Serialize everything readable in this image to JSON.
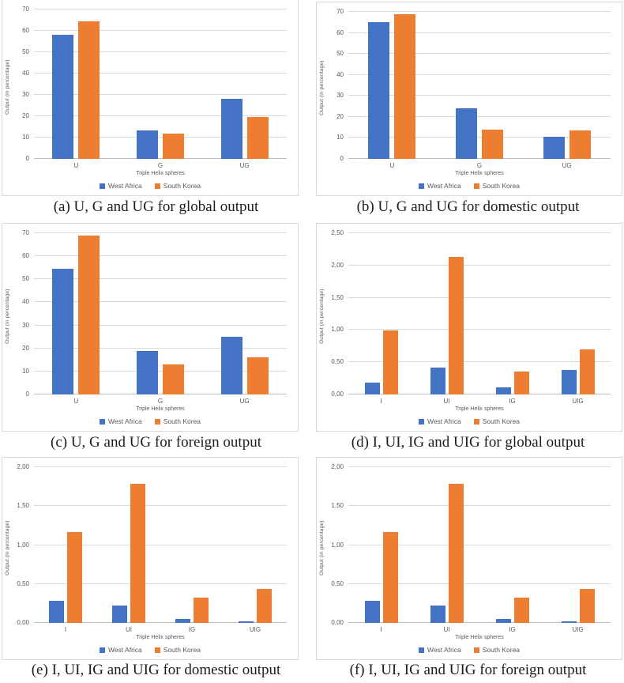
{
  "figure": {
    "y_axis_title": "Output (in percentage)",
    "x_axis_title": "Triple Helix spheres",
    "legend": [
      "West Africa",
      "South Korea"
    ],
    "colors": {
      "west_africa": "#4472C4",
      "south_korea": "#ED7D31",
      "gridline": "#d9d9d9",
      "tick_text": "#595959"
    }
  },
  "chart_data": [
    {
      "type": "bar",
      "id": "a",
      "caption": "(a) U, G and UG for global output",
      "categories": [
        "U",
        "G",
        "UG"
      ],
      "series": [
        {
          "name": "West Africa",
          "color": "#4472C4",
          "values": [
            58,
            13.5,
            28
          ]
        },
        {
          "name": "South Korea",
          "color": "#ED7D31",
          "values": [
            64.5,
            12,
            19.5
          ]
        }
      ],
      "xlabel": "Triple Helix spheres",
      "ylabel": "Output (in percentage)",
      "ylim": [
        0,
        70
      ],
      "yticks": [
        "0",
        "10",
        "20",
        "30",
        "40",
        "50",
        "60",
        "70"
      ],
      "grid": true,
      "legend_position": "bottom"
    },
    {
      "type": "bar",
      "id": "b",
      "caption": "(b) U, G and UG for domestic output",
      "categories": [
        "U",
        "G",
        "UG"
      ],
      "series": [
        {
          "name": "West Africa",
          "color": "#4472C4",
          "values": [
            65,
            24,
            10.5
          ]
        },
        {
          "name": "South Korea",
          "color": "#ED7D31",
          "values": [
            69,
            14,
            13.5
          ]
        }
      ],
      "xlabel": "Triple Helix spheres",
      "ylabel": "Output (in percentage)",
      "ylim": [
        0,
        70
      ],
      "yticks": [
        "0",
        "10",
        "20",
        "30",
        "40",
        "50",
        "60",
        "70"
      ],
      "grid": true,
      "legend_position": "bottom"
    },
    {
      "type": "bar",
      "id": "c",
      "caption": "(c) U, G and UG for foreign output",
      "categories": [
        "U",
        "G",
        "UG"
      ],
      "series": [
        {
          "name": "West Africa",
          "color": "#4472C4",
          "values": [
            54.5,
            19,
            25
          ]
        },
        {
          "name": "South Korea",
          "color": "#ED7D31",
          "values": [
            69,
            13,
            16
          ]
        }
      ],
      "xlabel": "Triple Helix spheres",
      "ylabel": "Output (in percentage)",
      "ylim": [
        0,
        70
      ],
      "yticks": [
        "0",
        "10",
        "20",
        "30",
        "40",
        "50",
        "60",
        "70"
      ],
      "grid": true,
      "legend_position": "bottom"
    },
    {
      "type": "bar",
      "id": "d",
      "caption": "(d) I, UI, IG and UIG for global output",
      "categories": [
        "I",
        "UI",
        "IG",
        "UIG"
      ],
      "series": [
        {
          "name": "West Africa",
          "color": "#4472C4",
          "values": [
            0.19,
            0.42,
            0.11,
            0.38
          ]
        },
        {
          "name": "South Korea",
          "color": "#ED7D31",
          "values": [
            0.99,
            2.13,
            0.36,
            0.7
          ]
        }
      ],
      "xlabel": "Triple Helix spheres",
      "ylabel": "Output (in percentage)",
      "ylim": [
        0,
        2.5
      ],
      "yticks": [
        "0,00",
        "0,50",
        "1,00",
        "1,50",
        "2,00",
        "2,50"
      ],
      "grid": true,
      "legend_position": "bottom"
    },
    {
      "type": "bar",
      "id": "e",
      "caption": "(e) I, UI, IG and UIG for domestic output",
      "categories": [
        "I",
        "UI",
        "IG",
        "UIG"
      ],
      "series": [
        {
          "name": "West Africa",
          "color": "#4472C4",
          "values": [
            0.28,
            0.22,
            0.05,
            0.02
          ]
        },
        {
          "name": "South Korea",
          "color": "#ED7D31",
          "values": [
            1.17,
            1.79,
            0.32,
            0.44
          ]
        }
      ],
      "xlabel": "Triple Helix spheres",
      "ylabel": "Output (in percentage)",
      "ylim": [
        0,
        2.0
      ],
      "yticks": [
        "0,00",
        "0,50",
        "1,00",
        "1,50",
        "2,00"
      ],
      "grid": true,
      "legend_position": "bottom"
    },
    {
      "type": "bar",
      "id": "f",
      "caption": "(f) I, UI, IG and UIG for foreign output",
      "categories": [
        "I",
        "UI",
        "IG",
        "UIG"
      ],
      "series": [
        {
          "name": "West Africa",
          "color": "#4472C4",
          "values": [
            0.28,
            0.22,
            0.05,
            0.02
          ]
        },
        {
          "name": "South Korea",
          "color": "#ED7D31",
          "values": [
            1.17,
            1.79,
            0.32,
            0.44
          ]
        }
      ],
      "xlabel": "Triple Helix spheres",
      "ylabel": "Output (in percentage)",
      "ylim": [
        0,
        2.0
      ],
      "yticks": [
        "0,00",
        "0,50",
        "1,00",
        "1,50",
        "2,00"
      ],
      "grid": true,
      "legend_position": "bottom"
    }
  ]
}
